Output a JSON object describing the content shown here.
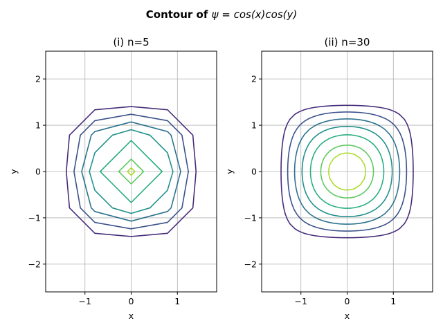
{
  "figure": {
    "suptitle_prefix": "Contour of ",
    "suptitle_formula": "ψ = cos(x)cos(y)"
  },
  "chart_data": [
    {
      "type": "contour",
      "title": "(i) n=5",
      "xlabel": "x",
      "ylabel": "y",
      "xlim": [
        -1.85,
        1.85
      ],
      "ylim": [
        -2.6,
        2.6
      ],
      "xticks": [
        -1,
        0,
        1
      ],
      "xtick_labels": [
        "−1",
        "0",
        "1"
      ],
      "yticks": [
        -2,
        -1,
        0,
        1,
        2
      ],
      "ytick_labels": [
        "−2",
        "−1",
        "0",
        "1",
        "2"
      ],
      "grid": true,
      "grid_n": 5,
      "function": "cos(x)cos(y)",
      "levels": [
        {
          "value": 0.15,
          "color": "#472d7b"
        },
        {
          "value": 0.3,
          "color": "#3b528b"
        },
        {
          "value": 0.45,
          "color": "#2c728e"
        },
        {
          "value": 0.6,
          "color": "#21918c"
        },
        {
          "value": 0.75,
          "color": "#28ae80"
        },
        {
          "value": 0.9,
          "color": "#5ec962"
        },
        {
          "value": 0.97,
          "color": "#addc30"
        }
      ]
    },
    {
      "type": "contour",
      "title": "(ii) n=30",
      "xlabel": "x",
      "ylabel": "y",
      "xlim": [
        -1.85,
        1.85
      ],
      "ylim": [
        -2.6,
        2.6
      ],
      "xticks": [
        -1,
        0,
        1
      ],
      "xtick_labels": [
        "−1",
        "0",
        "1"
      ],
      "yticks": [
        -2,
        -1,
        0,
        1,
        2
      ],
      "ytick_labels": [
        "−2",
        "−1",
        "0",
        "1",
        "2"
      ],
      "grid": true,
      "grid_n": 30,
      "function": "cos(x)cos(y)",
      "levels": [
        {
          "value": 0.14,
          "color": "#472d7b"
        },
        {
          "value": 0.28,
          "color": "#3b528b"
        },
        {
          "value": 0.42,
          "color": "#2c728e"
        },
        {
          "value": 0.56,
          "color": "#21918c"
        },
        {
          "value": 0.7,
          "color": "#28ae80"
        },
        {
          "value": 0.84,
          "color": "#5ec962"
        },
        {
          "value": 0.92,
          "color": "#addc30"
        }
      ]
    }
  ]
}
